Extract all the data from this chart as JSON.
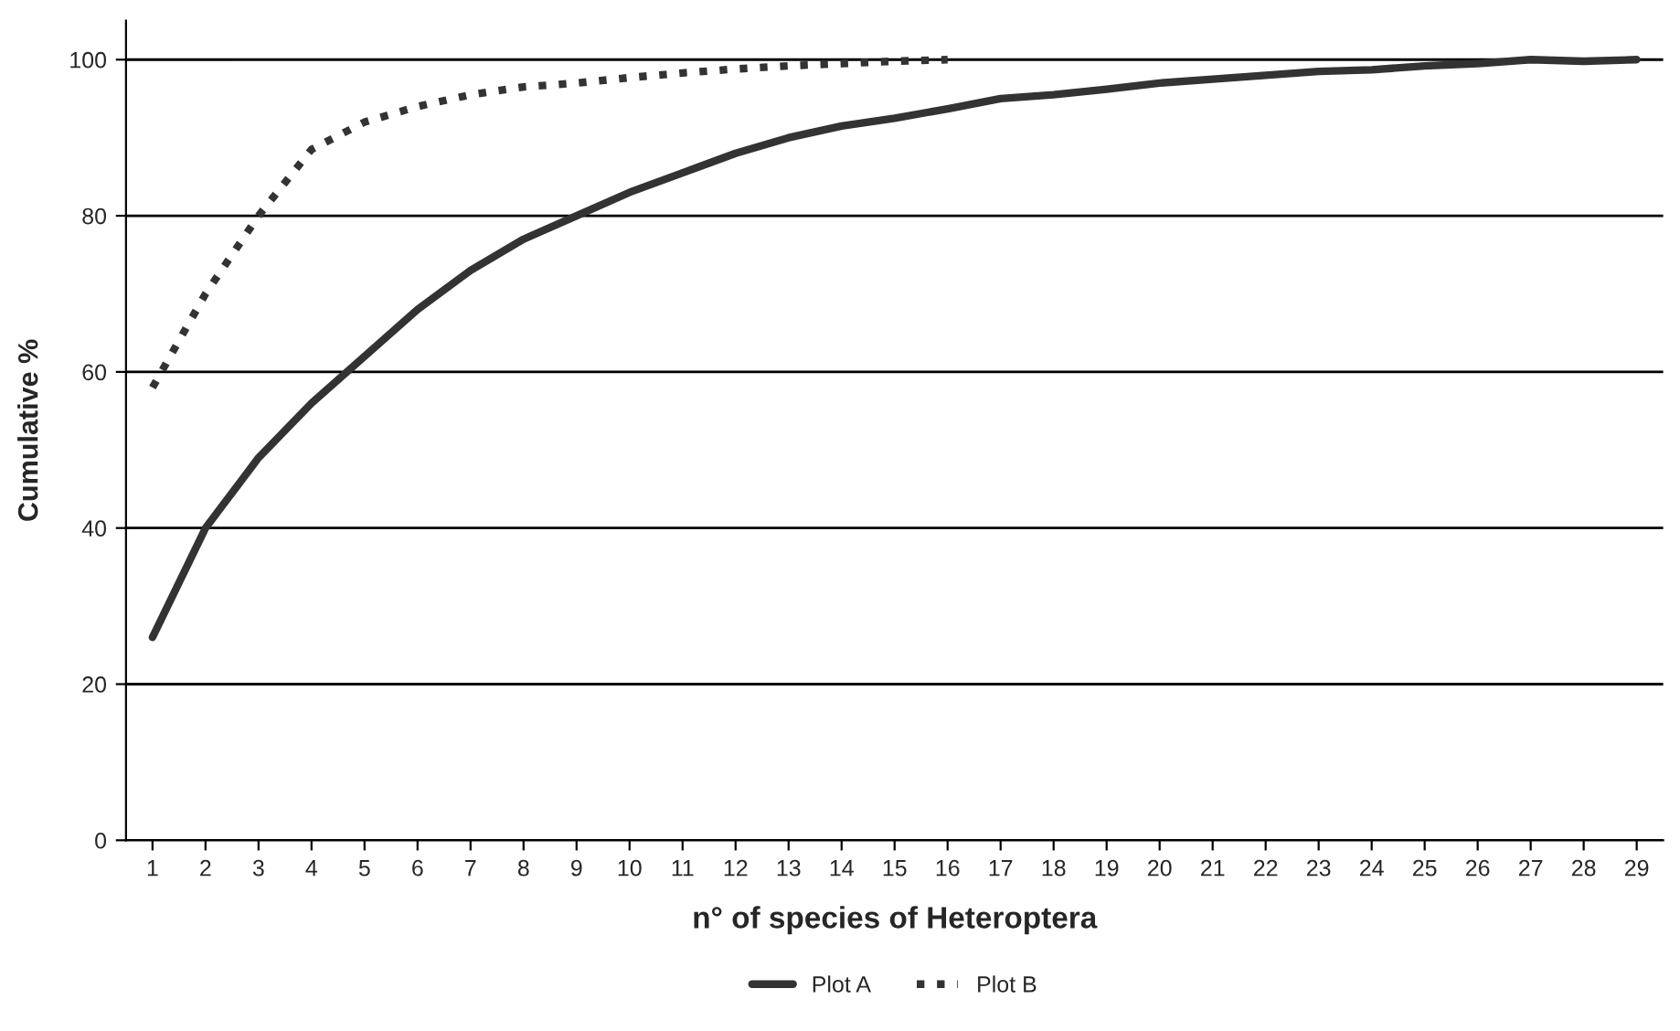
{
  "chart_data": {
    "type": "line",
    "xlabel": "n° of species of Heteroptera",
    "ylabel": "Cumulative %",
    "categories": [
      "1",
      "2",
      "3",
      "4",
      "5",
      "6",
      "7",
      "8",
      "9",
      "10",
      "11",
      "12",
      "13",
      "14",
      "15",
      "16",
      "17",
      "18",
      "19",
      "20",
      "21",
      "22",
      "23",
      "24",
      "25",
      "26",
      "27",
      "28",
      "29"
    ],
    "series": [
      {
        "name": "Plot A",
        "color": "#333333",
        "line_style": "solid",
        "values": [
          26,
          40,
          49,
          56,
          62,
          68,
          73,
          77,
          80,
          83,
          85.5,
          88,
          90,
          91.5,
          92.5,
          93.7,
          95,
          95.5,
          96.2,
          97,
          97.5,
          98,
          98.5,
          98.7,
          99.2,
          99.5,
          100,
          99.8,
          100
        ]
      },
      {
        "name": "Plot B",
        "color": "#333333",
        "line_style": "dotted",
        "values": [
          58,
          70,
          80,
          88.5,
          92,
          94,
          95.5,
          96.5,
          97,
          97.7,
          98.3,
          98.8,
          99.2,
          99.5,
          99.8,
          100,
          null,
          null,
          null,
          null,
          null,
          null,
          null,
          null,
          null,
          null,
          null,
          null,
          null
        ]
      }
    ],
    "ylim": [
      0,
      105
    ],
    "yticks": [
      0,
      20,
      40,
      60,
      80,
      100
    ],
    "grid": "y",
    "legend": "bottom"
  }
}
